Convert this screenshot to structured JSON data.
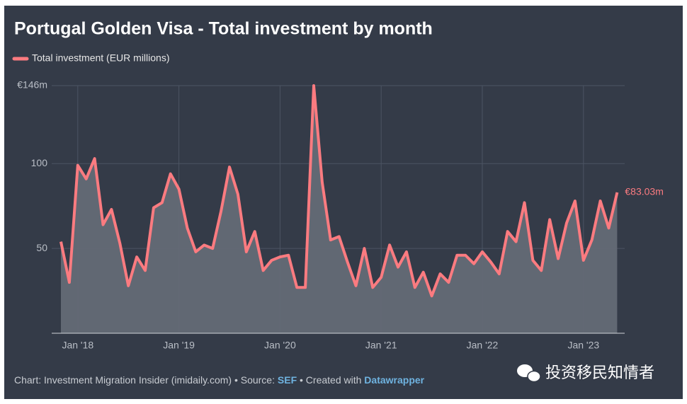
{
  "chart_data": {
    "type": "area-line",
    "title": "Portugal Golden Visa - Total investment by month",
    "categories": [
      null,
      null,
      "Jan '18",
      null,
      null,
      null,
      null,
      null,
      null,
      null,
      null,
      null,
      null,
      null,
      "Jan '19",
      null,
      null,
      null,
      null,
      null,
      null,
      null,
      null,
      null,
      null,
      null,
      "Jan '20",
      null,
      null,
      null,
      null,
      null,
      null,
      null,
      null,
      null,
      null,
      null,
      "Jan '21",
      null,
      null,
      null,
      null,
      null,
      null,
      null,
      null,
      null,
      null,
      null,
      "Jan '22",
      null,
      null,
      null,
      null,
      null,
      null,
      null,
      null,
      null,
      null,
      null,
      "Jan '23",
      null,
      null,
      null,
      null
    ],
    "series": [
      {
        "name": "Total investment (EUR millions)",
        "color": "#fb7b80",
        "area_color": "#646a76",
        "values": [
          54,
          30,
          99,
          91,
          103,
          64,
          73,
          53,
          28,
          45,
          37,
          74,
          77,
          94,
          85,
          62,
          48,
          52,
          50,
          72,
          98,
          82,
          48,
          60,
          37,
          43,
          45,
          46,
          27,
          27,
          146,
          89,
          55,
          57,
          42,
          28,
          50,
          27,
          33,
          52,
          39,
          48,
          27,
          36,
          22,
          35,
          30,
          46,
          46,
          41,
          48,
          42,
          35,
          60,
          54,
          77,
          43,
          37,
          67,
          44,
          65,
          78,
          43,
          55,
          78,
          62,
          83.03
        ],
        "value_labels": [
          null,
          null,
          null,
          null,
          null,
          null,
          null,
          null,
          null,
          null,
          null,
          null,
          null,
          null,
          null,
          null,
          null,
          null,
          null,
          null,
          null,
          null,
          null,
          null,
          null,
          null,
          null,
          null,
          null,
          null,
          null,
          null,
          null,
          null,
          null,
          null,
          null,
          null,
          null,
          null,
          null,
          null,
          null,
          null,
          null,
          null,
          null,
          null,
          null,
          null,
          null,
          null,
          null,
          null,
          null,
          null,
          null,
          null,
          null,
          null,
          null,
          null,
          null,
          null,
          null,
          null,
          "€83.03m"
        ]
      }
    ],
    "ylim": [
      0,
      146
    ],
    "yticks": [
      50,
      100,
      {
        "value": 146,
        "label": "€146m"
      }
    ],
    "grid": true,
    "footer": {
      "prefix": "Chart: Investment Migration Insider (imidaily.com) • Source:",
      "source": "SEF",
      "middle": "• Created with",
      "tool": "Datawrapper"
    },
    "watermark": "投资移民知情者"
  }
}
